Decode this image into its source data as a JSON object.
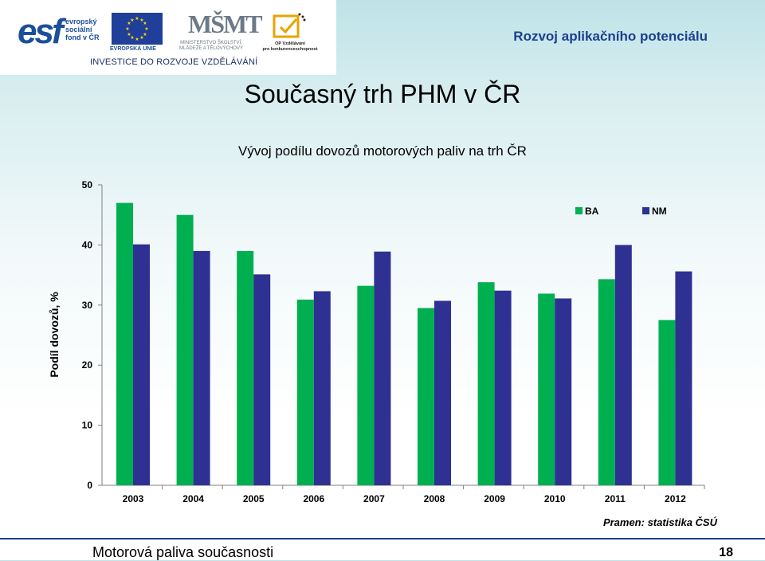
{
  "header": {
    "logos": {
      "esf_mark": "esf",
      "esf_text": "evropský\nsociální\nfond v ČR",
      "eu_text": "EVROPSKÁ UNIE",
      "msmt_mark": "MŠMT",
      "msmt_text": "MINISTERSTVO ŠKOLSTVÍ,\nMLÁDEŽE A TĚLOVÝCHOVY",
      "op_text": "OP Vzdělávání\npro konkurenceschopnost",
      "investice": "INVESTICE DO ROZVOJE VZDĚLÁVÁNÍ"
    },
    "right_title": "Rozvoj aplikačního potenciálu"
  },
  "page_title": "Současný trh PHM v ČR",
  "chart_data": {
    "type": "bar",
    "title": "Vývoj podílu dovozů motorových paliv na trh ČR",
    "xlabel": "",
    "ylabel": "Podíl dovozů, %",
    "categories": [
      "2003",
      "2004",
      "2005",
      "2006",
      "2007",
      "2008",
      "2009",
      "2010",
      "2011",
      "2012"
    ],
    "series": [
      {
        "name": "BA",
        "color": "#00b050",
        "values": [
          47.0,
          45.0,
          39.0,
          30.9,
          33.2,
          29.5,
          33.8,
          31.9,
          34.3,
          27.5
        ]
      },
      {
        "name": "NM",
        "color": "#2e3192",
        "values": [
          40.1,
          39.0,
          35.1,
          32.3,
          38.9,
          30.7,
          32.4,
          31.1,
          40.0,
          35.6
        ]
      }
    ],
    "ylim": [
      0,
      50
    ],
    "yticks": [
      0,
      10,
      20,
      30,
      40,
      50
    ],
    "grid": false,
    "legend": "top-right"
  },
  "source": "Pramen: statistika ČSÚ",
  "footer": {
    "left": "Motorová paliva současnosti",
    "page_number": "18"
  }
}
